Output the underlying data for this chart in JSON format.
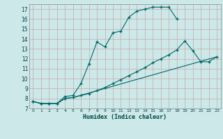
{
  "background_color": "#cce8e8",
  "grid_color": "#b0d0d0",
  "line_color": "#006868",
  "xlabel": "Humidex (Indice chaleur)",
  "xlim": [
    -0.5,
    23.5
  ],
  "ylim": [
    7,
    17.5
  ],
  "yticks": [
    7,
    8,
    9,
    10,
    11,
    12,
    13,
    14,
    15,
    16,
    17
  ],
  "xticks": [
    0,
    1,
    2,
    3,
    4,
    5,
    6,
    7,
    8,
    9,
    10,
    11,
    12,
    13,
    14,
    15,
    16,
    17,
    18,
    19,
    20,
    21,
    22,
    23
  ],
  "series1_x": [
    0,
    1,
    2,
    3,
    4,
    5,
    6,
    7,
    8,
    9,
    10,
    11,
    12,
    13,
    14,
    15,
    16,
    17,
    18
  ],
  "series1_y": [
    7.7,
    7.5,
    7.5,
    7.5,
    8.2,
    8.3,
    9.5,
    11.5,
    13.7,
    13.2,
    14.6,
    14.8,
    16.2,
    16.8,
    17.0,
    17.2,
    17.2,
    17.2,
    16.0
  ],
  "series2_x": [
    0,
    1,
    2,
    3,
    4,
    5,
    6,
    7,
    8,
    9,
    10,
    11,
    12,
    13,
    14,
    15,
    16,
    17,
    18,
    19,
    20,
    21,
    22,
    23
  ],
  "series2_y": [
    7.7,
    7.5,
    7.5,
    7.5,
    8.0,
    8.1,
    8.3,
    8.5,
    8.8,
    9.1,
    9.5,
    9.9,
    10.3,
    10.7,
    11.1,
    11.6,
    12.0,
    12.4,
    12.9,
    13.8,
    12.8,
    11.7,
    11.7,
    12.2
  ],
  "series3_x": [
    0,
    1,
    2,
    3,
    4,
    5,
    23
  ],
  "series3_y": [
    7.7,
    7.5,
    7.5,
    7.5,
    8.0,
    8.1,
    12.2
  ]
}
